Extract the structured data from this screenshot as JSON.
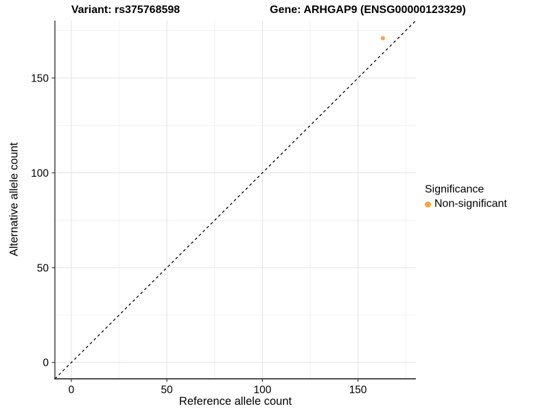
{
  "titles": {
    "variant": "Variant: rs375768598",
    "gene": "Gene: ARHGAP9 (ENSG00000123329)"
  },
  "axes": {
    "x_label": "Reference allele count",
    "y_label": "Alternative allele count"
  },
  "legend": {
    "title": "Significance",
    "items": [
      {
        "label": "Non-significant",
        "color": "#FAA53F"
      }
    ]
  },
  "chart_data": {
    "type": "scatter",
    "title": "Variant: rs375768598 — Gene: ARHGAP9 (ENSG00000123329)",
    "xlabel": "Reference allele count",
    "ylabel": "Alternative allele count",
    "xlim": [
      -8.6,
      180.3
    ],
    "ylim": [
      -8.6,
      180.3
    ],
    "x_ticks": [
      0,
      50,
      100,
      150
    ],
    "y_ticks": [
      0,
      50,
      100,
      150
    ],
    "x_minor_ticks": [
      25,
      75,
      125,
      175
    ],
    "y_minor_ticks": [
      25,
      75,
      125,
      175
    ],
    "grid": true,
    "legend_position": "right",
    "series": [
      {
        "name": "Non-significant",
        "color": "#FAA53F",
        "points": [
          {
            "x": 163,
            "y": 171
          }
        ]
      }
    ],
    "reference_line": {
      "slope": 1,
      "intercept": 0,
      "style": "dashed",
      "color": "#000000"
    },
    "style": {
      "grid_major_color": "#E4E4E4",
      "grid_minor_color": "#F1F1F1",
      "axis_line_color": "#333333",
      "tick_color": "#333333",
      "point_radius": 3.1,
      "legend_dot_radius": 4.5
    }
  }
}
